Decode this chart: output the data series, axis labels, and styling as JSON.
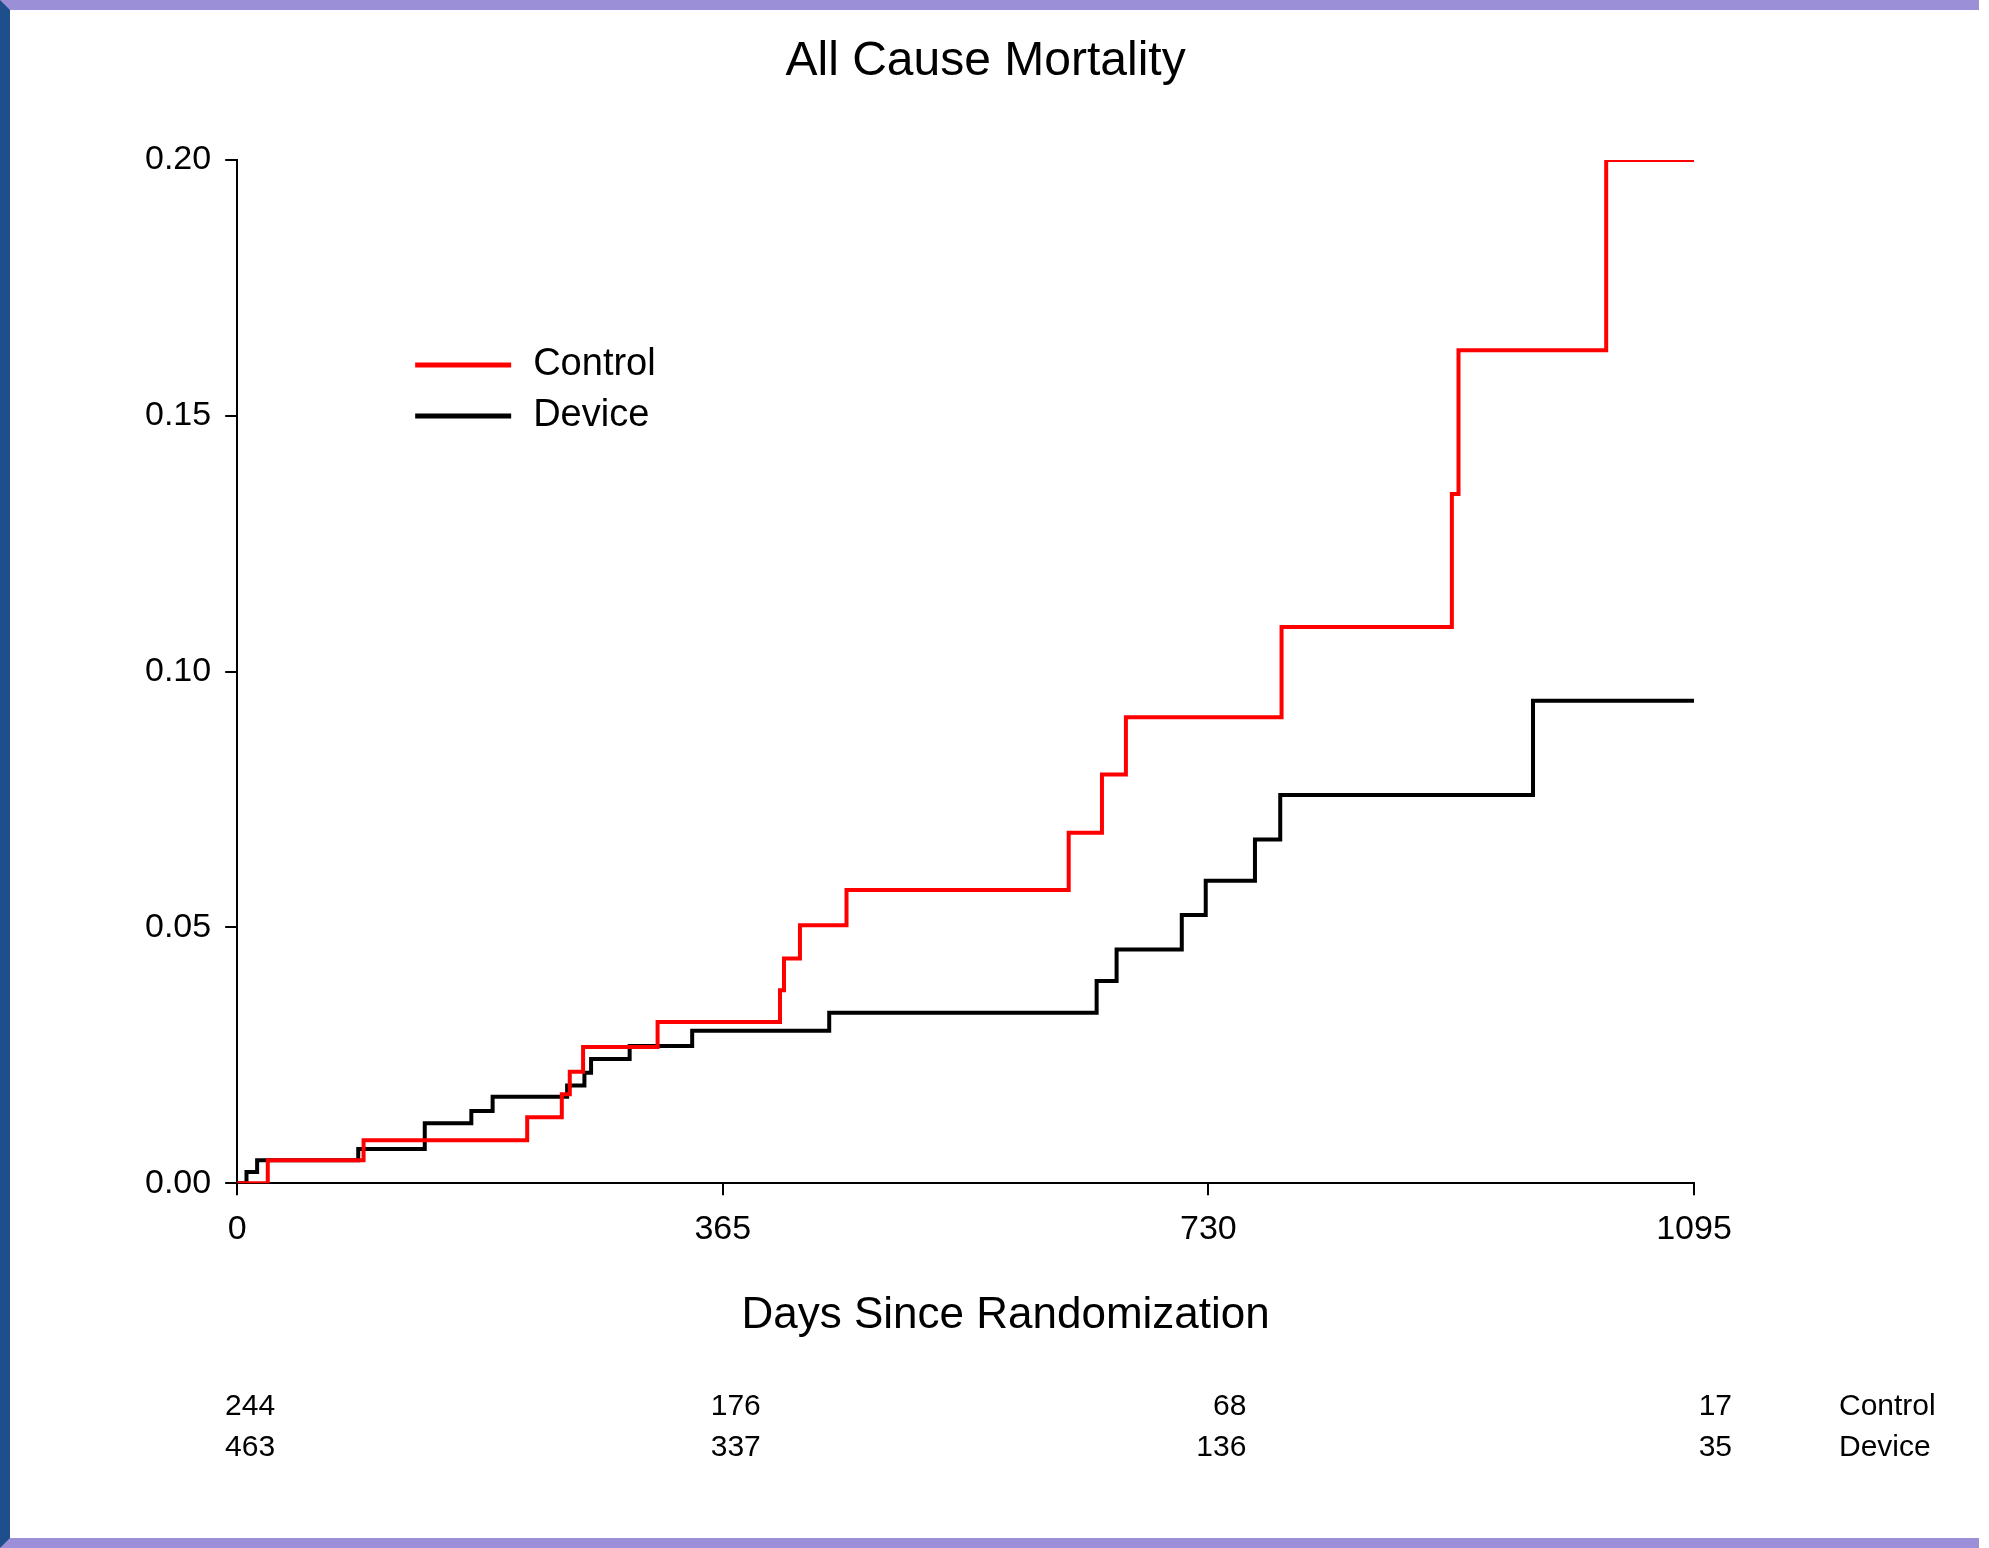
{
  "chart_data": {
    "type": "step",
    "title": "All Cause Mortality",
    "xlabel": "Days Since Randomization",
    "series": [
      {
        "name": "Control",
        "color": "#ff0000",
        "x": [
          0,
          23,
          95,
          218,
          244,
          250,
          260,
          316,
          408,
          411,
          423,
          458,
          625,
          650,
          668,
          785,
          913,
          918,
          1029,
          1095
        ],
        "values": [
          0,
          0.0045,
          0.0084,
          0.0129,
          0.0174,
          0.0218,
          0.0266,
          0.0315,
          0.0377,
          0.0439,
          0.0504,
          0.0573,
          0.0685,
          0.0799,
          0.0911,
          0.1087,
          0.1347,
          0.1628,
          0.2,
          0.2
        ]
      },
      {
        "name": "Device",
        "color": "#000000",
        "x": [
          0,
          7,
          15,
          91,
          141,
          176,
          192,
          248,
          261,
          266,
          295,
          342,
          445,
          646,
          661,
          710,
          728,
          765,
          784,
          974,
          1095
        ],
        "values": [
          0,
          0.0022,
          0.0045,
          0.0067,
          0.0117,
          0.0141,
          0.0169,
          0.0191,
          0.0216,
          0.0243,
          0.0268,
          0.0298,
          0.0333,
          0.0395,
          0.0457,
          0.0524,
          0.0591,
          0.0672,
          0.0759,
          0.0943,
          0.0943
        ]
      }
    ],
    "xlim": [
      0,
      1095
    ],
    "xticks": [
      0,
      365,
      730,
      1095
    ],
    "ylim": [
      0,
      0.2
    ],
    "yticks": [
      {
        "value": 0,
        "label": "0.00"
      },
      {
        "value": 0.05,
        "label": "0.05"
      },
      {
        "value": 0.1,
        "label": "0.10"
      },
      {
        "value": 0.15,
        "label": "0.15"
      },
      {
        "value": 0.2,
        "label": "0.20"
      }
    ],
    "grid": false,
    "legend": "top left",
    "annotations": [
      "244",
      "176",
      "68",
      "17",
      "Control",
      "463",
      "337",
      "136",
      "35",
      "Device"
    ]
  }
}
